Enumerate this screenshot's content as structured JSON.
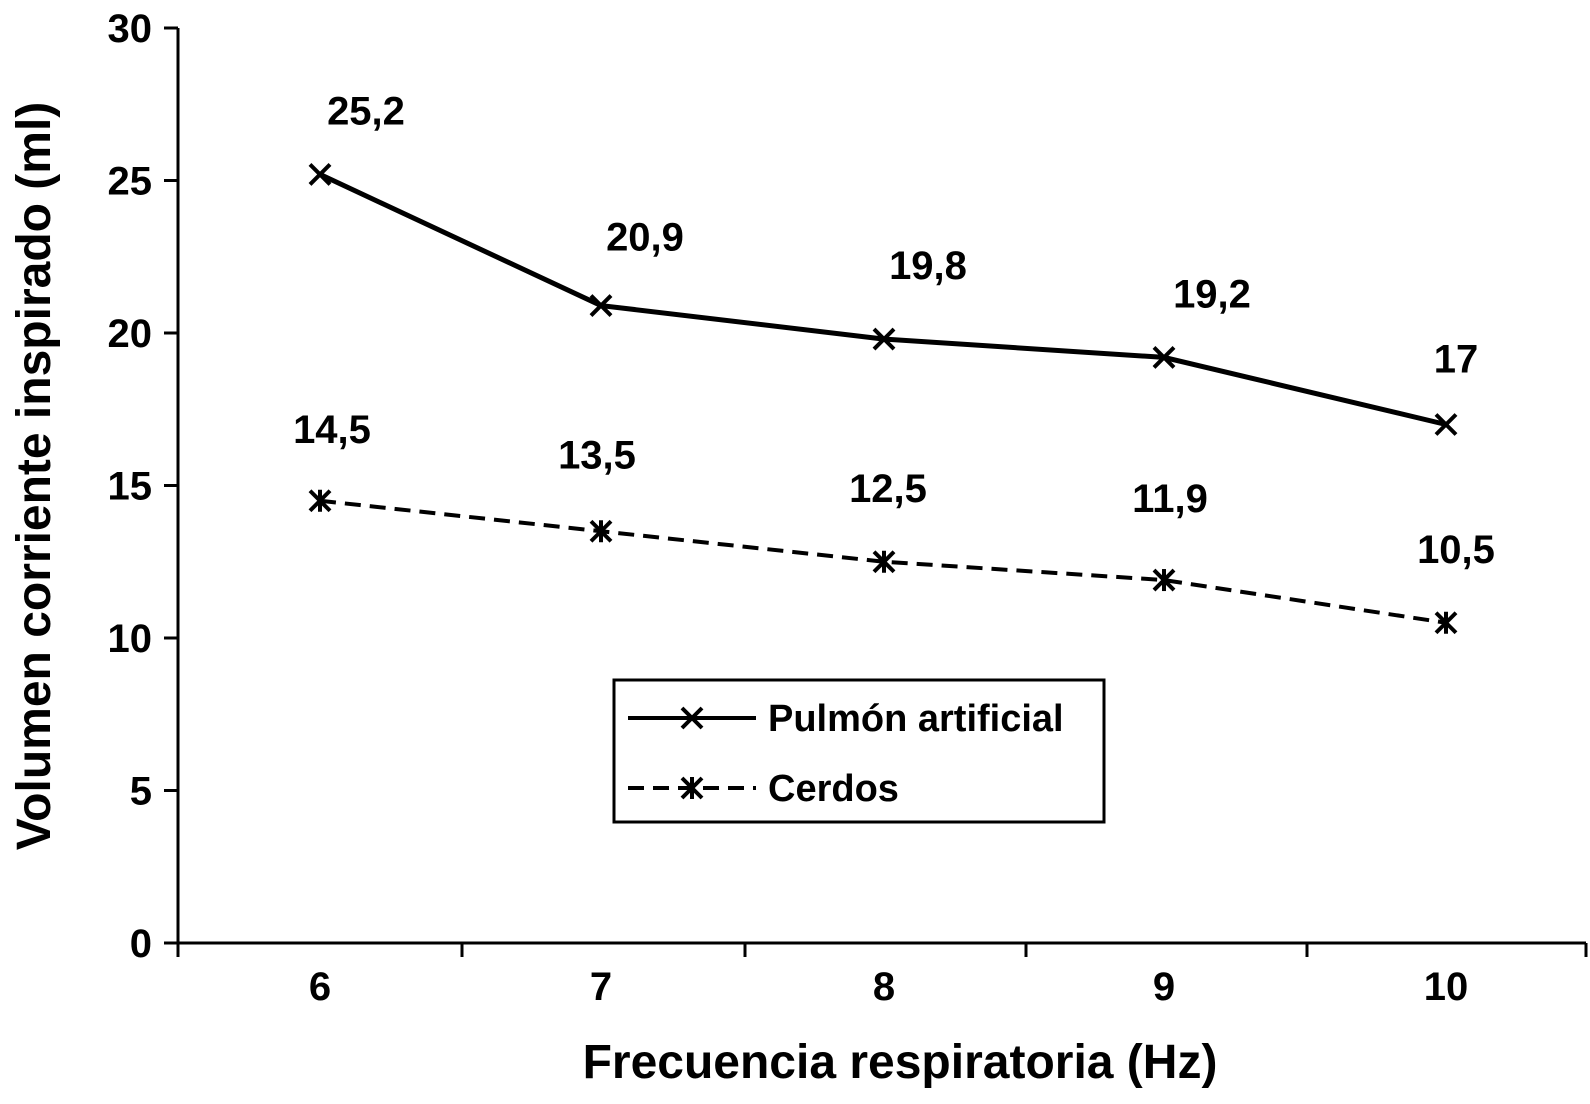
{
  "chart_data": {
    "type": "line",
    "title": "",
    "xlabel": "Frecuencia respiratoria (Hz)",
    "ylabel": "Volumen corriente inspirado (ml)",
    "x": [
      6,
      7,
      8,
      9,
      10
    ],
    "x_tick_labels": [
      "6",
      "7",
      "8",
      "9",
      "10"
    ],
    "ylim": [
      0,
      30
    ],
    "y_ticks": [
      0,
      5,
      10,
      15,
      20,
      25,
      30
    ],
    "y_tick_labels": [
      "0",
      "5",
      "10",
      "15",
      "20",
      "25",
      "30"
    ],
    "grid": false,
    "legend_position": "bottom-center",
    "series": [
      {
        "name": "Pulmón artificial",
        "values": [
          25.2,
          20.9,
          19.8,
          19.2,
          17
        ],
        "labels": [
          "25,2",
          "20,9",
          "19,8",
          "19,2",
          "17"
        ],
        "line_style": "solid",
        "marker": "x",
        "color": "#000000"
      },
      {
        "name": "Cerdos",
        "values": [
          14.5,
          13.5,
          12.5,
          11.9,
          10.5
        ],
        "labels": [
          "14,5",
          "13,5",
          "12,5",
          "11,9",
          "10,5"
        ],
        "line_style": "dashed",
        "marker": "asterisk",
        "color": "#000000"
      }
    ]
  }
}
